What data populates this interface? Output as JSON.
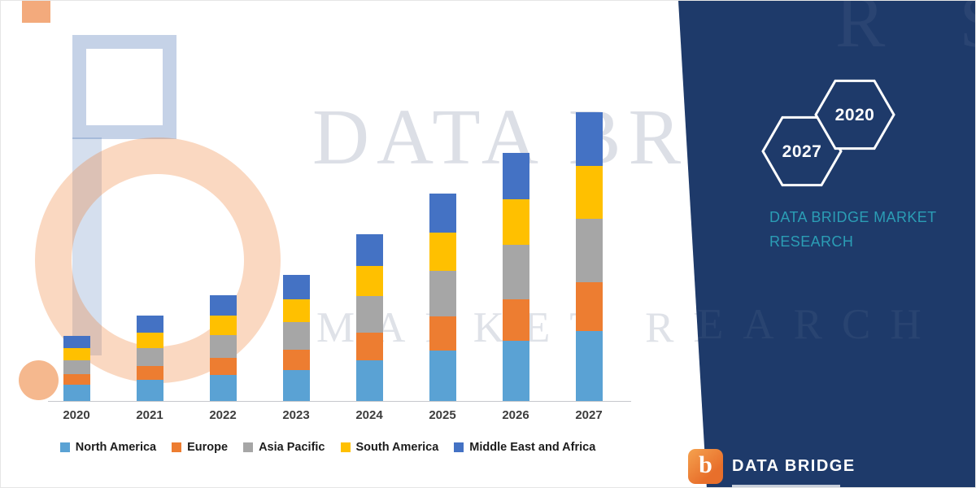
{
  "brand": {
    "navy_color": "#1e3a6a",
    "teal_color": "#2b9db5",
    "orange_color": "#ed7d31",
    "heading_line1": "DATA BRIDGE MARKET",
    "heading_line2": "RESEARCH",
    "hex_badges": [
      "2027",
      "2020"
    ]
  },
  "footer_logo": {
    "icon_letter": "b",
    "text": "DATA BRIDGE"
  },
  "watermark": {
    "line1": "DATA BRIDGE",
    "line2": "MARKET RESEARCH",
    "navy_fragment_top": "R S",
    "navy_fragment_mid": "EARCH"
  },
  "chart_data": {
    "type": "bar",
    "stacked": true,
    "title": "",
    "xlabel": "",
    "ylabel": "",
    "value_axis_visible": false,
    "units": "relative (no value axis shown)",
    "grid": false,
    "legend_position": "bottom",
    "categories": [
      "2020",
      "2021",
      "2022",
      "2023",
      "2024",
      "2025",
      "2026",
      "2027"
    ],
    "series": [
      {
        "name": "North America",
        "color": "#5aa2d4",
        "values": [
          20,
          26,
          32,
          38,
          50,
          62,
          74,
          86
        ]
      },
      {
        "name": "Europe",
        "color": "#ed7d31",
        "values": [
          13,
          17,
          21,
          25,
          34,
          42,
          51,
          60
        ]
      },
      {
        "name": "Asia Pacific",
        "color": "#a6a6a6",
        "values": [
          17,
          22,
          28,
          34,
          45,
          56,
          67,
          78
        ]
      },
      {
        "name": "South America",
        "color": "#ffc000",
        "values": [
          15,
          19,
          24,
          28,
          37,
          47,
          56,
          65
        ]
      },
      {
        "name": "Middle East and Africa",
        "color": "#4472c4",
        "values": [
          15,
          21,
          25,
          30,
          39,
          48,
          57,
          66
        ]
      }
    ]
  }
}
